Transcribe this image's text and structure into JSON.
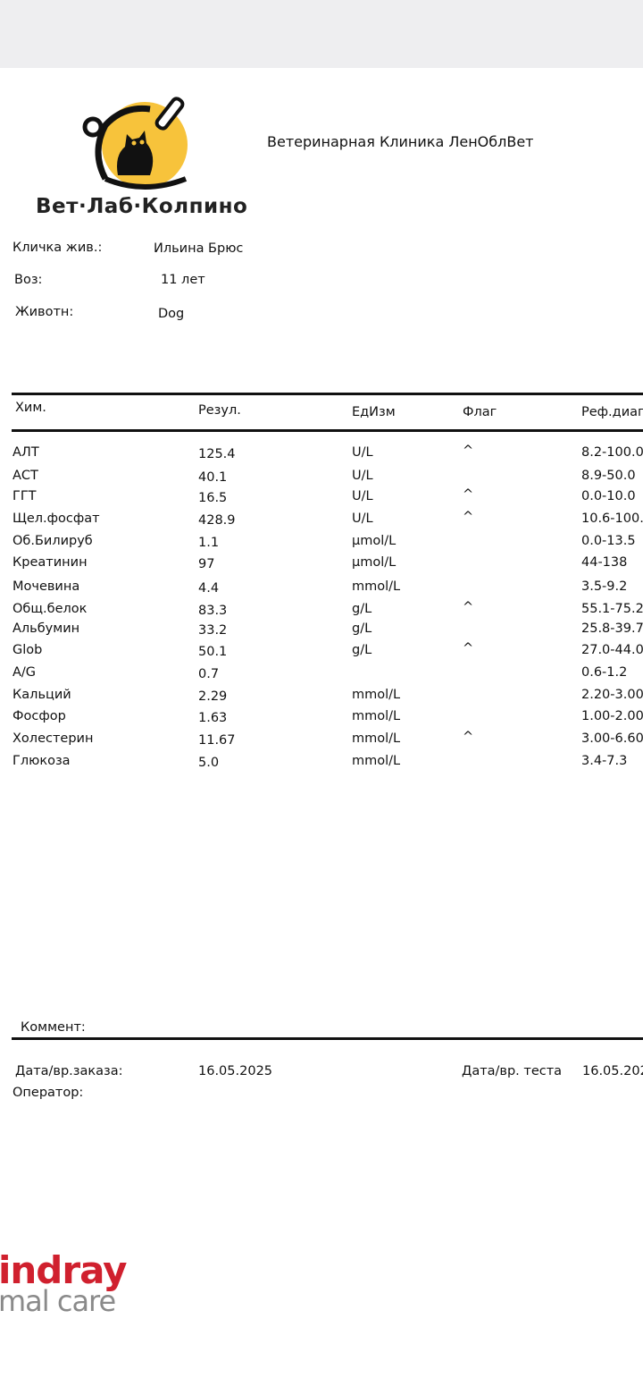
{
  "header": {
    "logo_text": "Вет·Лаб·Колпино",
    "clinic": "Ветеринарная Клиника ЛенОблВет"
  },
  "patient": {
    "name_label": "Кличка жив.:",
    "name": "Ильина Брюс",
    "age_label": "Воз:",
    "age": "11 лет",
    "species_label": "Животн:",
    "species": "Dog"
  },
  "table": {
    "headers": [
      "Хим.",
      "Резул.",
      "ЕдИзм",
      "Флаг",
      "Реф.диап"
    ],
    "rows": [
      [
        "АЛТ",
        "125.4",
        "U/L",
        "^",
        "8.2-100.0"
      ],
      [
        "АСТ",
        "40.1",
        "U/L",
        null,
        "8.9-50.0"
      ],
      [
        "ГГТ",
        "16.5",
        "U/L",
        "^",
        "0.0-10.0"
      ],
      [
        "Щел.фосфат",
        "428.9",
        "U/L",
        "^",
        "10.6-100."
      ],
      [
        "Об.Билируб",
        "1.1",
        "µmol/L",
        null,
        "0.0-13.5"
      ],
      [
        "Креатинин",
        "97",
        "µmol/L",
        null,
        "44-138"
      ],
      [
        "Мочевина",
        "4.4",
        "mmol/L",
        null,
        "3.5-9.2"
      ],
      [
        "Общ.белок",
        "83.3",
        "g/L",
        "^",
        "55.1-75.2"
      ],
      [
        "Альбумин",
        "33.2",
        "g/L",
        null,
        "25.8-39.7"
      ],
      [
        "Glob",
        "50.1",
        "g/L",
        "^",
        "27.0-44.0"
      ],
      [
        "A/G",
        "0.7",
        null,
        null,
        "0.6-1.2"
      ],
      [
        "Кальций",
        "2.29",
        "mmol/L",
        null,
        "2.20-3.00"
      ],
      [
        "Фосфор",
        "1.63",
        "mmol/L",
        null,
        "1.00-2.00"
      ],
      [
        "Холестерин",
        "11.67",
        "mmol/L",
        "^",
        "3.00-6.60"
      ],
      [
        "Глюкоза",
        "5.0",
        "mmol/L",
        null,
        "3.4-7.3"
      ]
    ]
  },
  "footer": {
    "comment_label": "Коммент:",
    "order_date_label": "Дата/вр.заказа:",
    "order_date": "16.05.2025",
    "test_date_label": "Дата/вр. теста",
    "test_date": "16.05.202",
    "operator_label": "Оператор:"
  },
  "brand": {
    "line1": "indray",
    "line2": "mal care"
  }
}
